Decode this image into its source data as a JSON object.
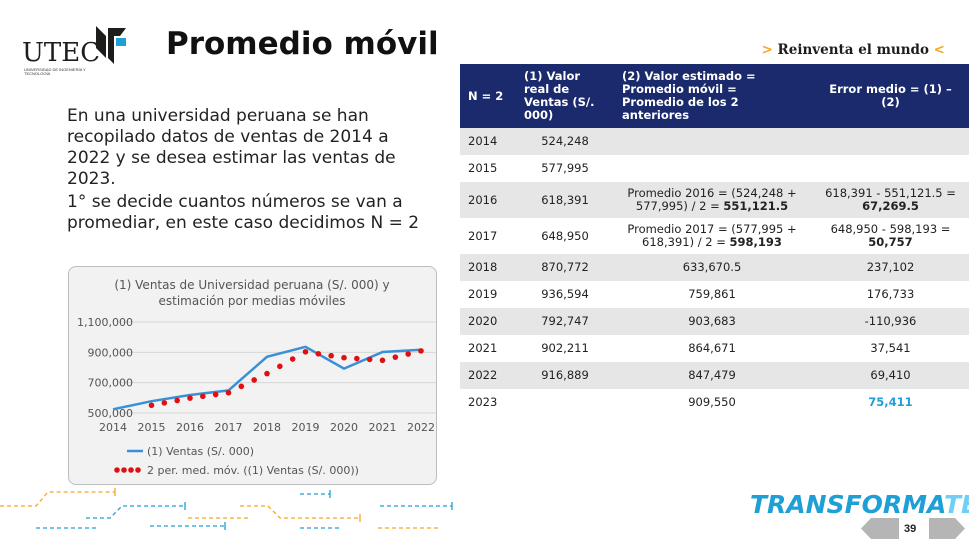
{
  "logo": {
    "word": "UTEC",
    "subtitle": "UNIVERSIDAD DE INGENIERÍA Y TECNOLOGÍA"
  },
  "header": {
    "title": "Promedio móvil",
    "tagline_prefix": "> ",
    "tagline": "Reinventa el mundo",
    "tagline_suffix": " <"
  },
  "intro": {
    "p1": "En una universidad peruana se han recopilado datos de ventas de 2014 a 2022 y se desea estimar las ventas de 2023.",
    "p2": "1° se decide cuantos números se van a promediar, en este caso decidimos N = 2"
  },
  "chart_data": {
    "type": "line",
    "title": "(1) Ventas de Universidad peruana (S/. 000) y estimación por medias móviles",
    "categories": [
      "2014",
      "2015",
      "2016",
      "2017",
      "2018",
      "2019",
      "2020",
      "2021",
      "2022"
    ],
    "series": [
      {
        "name": "(1) Ventas  (S/. 000)",
        "values": [
          524248,
          577995,
          618391,
          648950,
          870772,
          936594,
          792747,
          902211,
          916889
        ],
        "color": "#3a8fd6",
        "style": "solid"
      },
      {
        "name": "2 per. med. móv. ((1) Ventas  (S/. 000))",
        "values": [
          null,
          551121.5,
          598193,
          633670.5,
          759861,
          903683,
          864671,
          847479,
          909550
        ],
        "color": "#e01010",
        "style": "dotted"
      }
    ],
    "ylim": [
      500000,
      1100000
    ],
    "yticks": [
      "1,100,000",
      "900,000",
      "700,000",
      "500,000"
    ],
    "ytick_values": [
      1100000,
      900000,
      700000,
      500000
    ],
    "grid": true,
    "legend": "bottom"
  },
  "table": {
    "headers": [
      "N = 2",
      "(1) Valor real de Ventas (S/. 000)",
      "(2) Valor estimado = Promedio móvil = Promedio de los 2 anteriores",
      "Error medio = (1) – (2)"
    ],
    "rows": [
      {
        "year": "2014",
        "real": "524,248",
        "est": "",
        "est_bold": "",
        "err": "",
        "err_bold": ""
      },
      {
        "year": "2015",
        "real": "577,995",
        "est": "",
        "est_bold": "",
        "err": "",
        "err_bold": ""
      },
      {
        "year": "2016",
        "real": "618,391",
        "est": "Promedio 2016 = (524,248 + 577,995) / 2 = ",
        "est_bold": "551,121.5",
        "err": "618,391 - 551,121.5 = ",
        "err_bold": "67,269.5"
      },
      {
        "year": "2017",
        "real": "648,950",
        "est": "Promedio 2017 = (577,995 + 618,391) / 2 = ",
        "est_bold": "598,193",
        "err": "648,950 - 598,193 = ",
        "err_bold": "50,757"
      },
      {
        "year": "2018",
        "real": "870,772",
        "est": "633,670.5",
        "est_bold": "",
        "err": "237,102",
        "err_bold": ""
      },
      {
        "year": "2019",
        "real": "936,594",
        "est": "759,861",
        "est_bold": "",
        "err": "176,733",
        "err_bold": ""
      },
      {
        "year": "2020",
        "real": "792,747",
        "est": "903,683",
        "est_bold": "",
        "err": "-110,936",
        "err_bold": ""
      },
      {
        "year": "2021",
        "real": "902,211",
        "est": "864,671",
        "est_bold": "",
        "err": "37,541",
        "err_bold": ""
      },
      {
        "year": "2022",
        "real": "916,889",
        "est": "847,479",
        "est_bold": "",
        "err": "69,410",
        "err_bold": ""
      },
      {
        "year": "2023",
        "real": "",
        "est": "909,550",
        "est_bold": "",
        "err": "",
        "err_bold": "",
        "err_blue": "75,411"
      }
    ]
  },
  "footer": {
    "brand_a": "TRANSFORMA",
    "brand_b": "TEC",
    "page": "39"
  },
  "colors": {
    "navy": "#1a2a6c",
    "accent_orange": "#f5a623",
    "accent_blue": "#1e9fd6"
  }
}
